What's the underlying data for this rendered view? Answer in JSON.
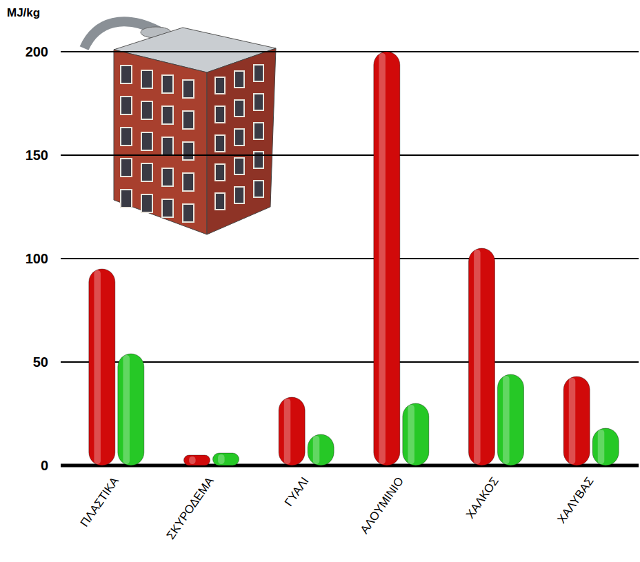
{
  "chart_data": {
    "type": "bar",
    "y_label": "MJ/kg",
    "categories": [
      "ΠΛΑΣΤΙΚΑ",
      "ΣΚΥΡΟΔΕΜΑ",
      "ΓΥΑΛΙ",
      "ΑΛΟΥΜΙΝΙΟ",
      "ΧΑΛΚΟΣ",
      "ΧΑΛΥΒΑΣ"
    ],
    "series": [
      {
        "color": "#d10a0a",
        "values": [
          95,
          5,
          33,
          200,
          105,
          43
        ]
      },
      {
        "color": "#26c826",
        "values": [
          54,
          6,
          15,
          30,
          44,
          18
        ]
      }
    ],
    "ylim": [
      0,
      200
    ],
    "yticks": [
      0,
      50,
      100,
      150,
      200
    ],
    "grid": true
  }
}
